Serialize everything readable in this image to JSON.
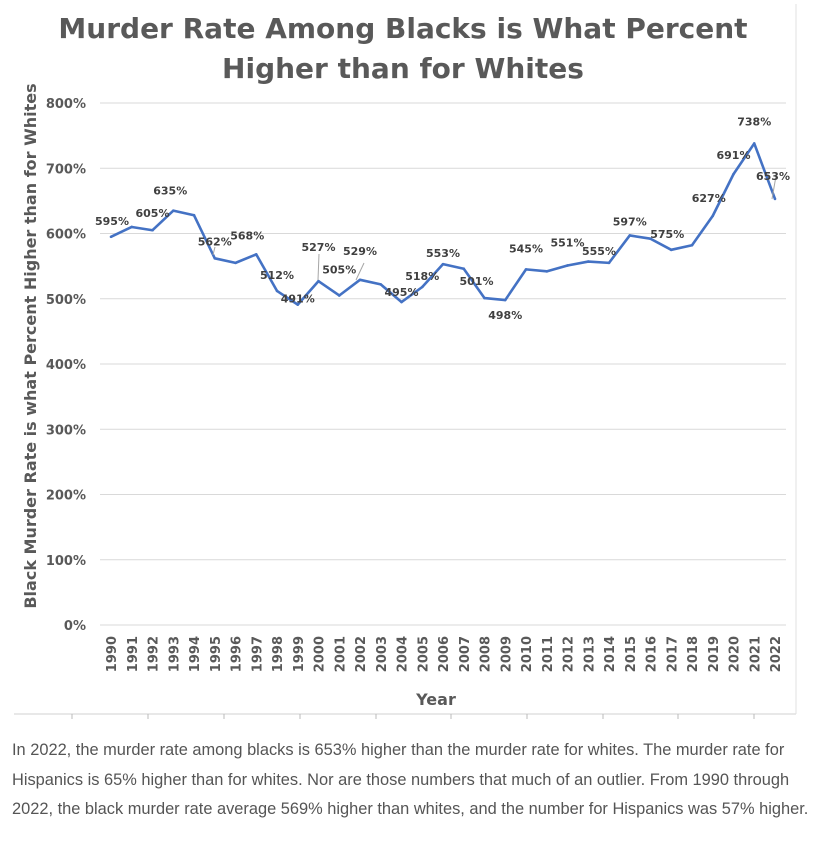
{
  "chart_data": {
    "type": "line",
    "title": [
      "Murder Rate Among Blacks is What Percent",
      "Higher than for Whites"
    ],
    "xlabel": "Year",
    "ylabel": "Black Murder Rate is what Percent Higher than for Whites",
    "ylim": [
      0,
      800
    ],
    "y_ticks": [
      "0%",
      "100%",
      "200%",
      "300%",
      "400%",
      "500%",
      "600%",
      "700%",
      "800%"
    ],
    "grid": true,
    "legend": "none",
    "colors": {
      "series": "#4472c4",
      "grid": "#d9d9d9",
      "text": "#595959"
    },
    "categories": [
      "1990",
      "1991",
      "1992",
      "1993",
      "1994",
      "1995",
      "1996",
      "1997",
      "1998",
      "1999",
      "2000",
      "2001",
      "2002",
      "2003",
      "2004",
      "2005",
      "2006",
      "2007",
      "2008",
      "2009",
      "2010",
      "2011",
      "2012",
      "2013",
      "2014",
      "2015",
      "2016",
      "2017",
      "2018",
      "2019",
      "2020",
      "2021",
      "2022"
    ],
    "series": [
      {
        "values": [
          595,
          610,
          605,
          635,
          628,
          562,
          555,
          568,
          512,
          491,
          527,
          505,
          529,
          522,
          495,
          518,
          553,
          546,
          501,
          498,
          545,
          542,
          551,
          557,
          555,
          597,
          592,
          575,
          582,
          627,
          691,
          738,
          653
        ]
      }
    ],
    "data_labels": [
      "595%",
      "",
      "605%",
      "635%",
      "",
      "562%",
      "",
      "568%",
      "512%",
      "491%",
      "527%",
      "505%",
      "529%",
      "",
      "495%",
      "518%",
      "553%",
      "",
      "501%",
      "498%",
      "545%",
      "",
      "551%",
      "",
      "555%",
      "597%",
      "",
      "575%",
      "",
      "627%",
      "691%",
      "738%",
      "653%"
    ]
  },
  "caption": "In 2022, the murder rate among blacks is 653% higher than the murder rate for whites. The murder rate for Hispanics is 65% higher than for whites. Nor are those numbers that much of an outlier. From 1990 through 2022, the black murder rate average 569% higher than whites, and the number for Hispanics was 57% higher."
}
